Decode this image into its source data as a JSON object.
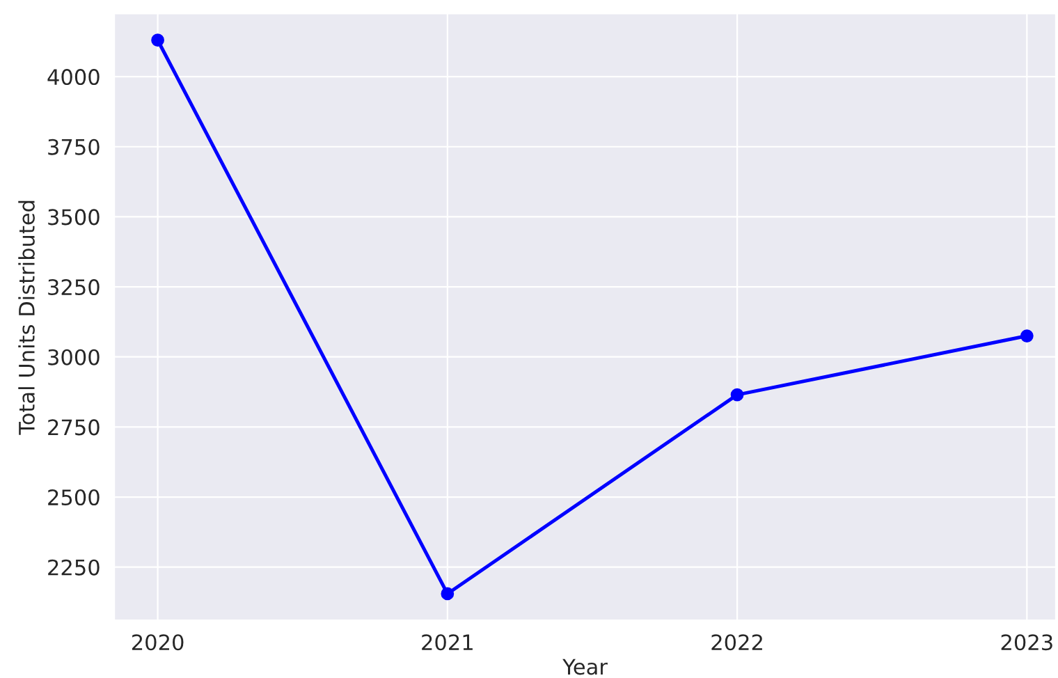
{
  "chart_data": {
    "type": "line",
    "xlabel": "Year",
    "ylabel": "Total Units Distributed",
    "categories": [
      "2020",
      "2021",
      "2022",
      "2023"
    ],
    "series": [
      {
        "color": "#0000ff",
        "values": [
          4130,
          2155,
          2865,
          3075
        ]
      }
    ],
    "ylim": [
      2060,
      4225
    ],
    "yticks": [
      2250,
      2500,
      2750,
      3000,
      3250,
      3500,
      3750,
      4000
    ],
    "grid": true,
    "marker": "circle",
    "line_style": "solid",
    "legend": false
  }
}
